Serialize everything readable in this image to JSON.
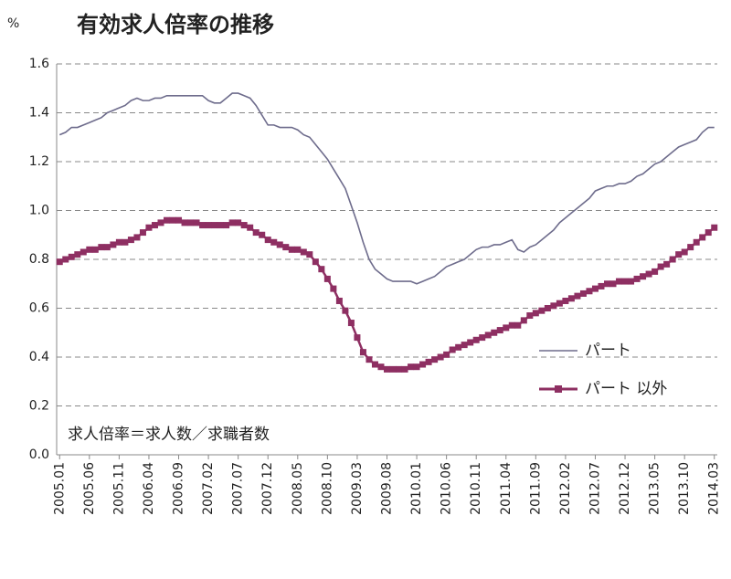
{
  "chart_data": {
    "type": "line",
    "title": "有効求人倍率の推移",
    "y_unit": "%",
    "annotation": "求人倍率＝求人数／求職者数",
    "categories": [
      "2005.01",
      null,
      null,
      null,
      null,
      "2005.06",
      null,
      null,
      null,
      null,
      "2005.11",
      null,
      null,
      null,
      null,
      "2006.04",
      null,
      null,
      null,
      null,
      "2006.09",
      null,
      null,
      null,
      null,
      "2007.02",
      null,
      null,
      null,
      null,
      "2007.07",
      null,
      null,
      null,
      null,
      "2007.12",
      null,
      null,
      null,
      null,
      "2008.05",
      null,
      null,
      null,
      null,
      "2008.10",
      null,
      null,
      null,
      null,
      "2009.03",
      null,
      null,
      null,
      null,
      "2009.08",
      null,
      null,
      null,
      null,
      "2010.01",
      null,
      null,
      null,
      null,
      "2010.06",
      null,
      null,
      null,
      null,
      "2010.11",
      null,
      null,
      null,
      null,
      "2011.04",
      null,
      null,
      null,
      null,
      "2011.09",
      null,
      null,
      null,
      null,
      "2012.02",
      null,
      null,
      null,
      null,
      "2012.07",
      null,
      null,
      null,
      null,
      "2012.12",
      null,
      null,
      null,
      null,
      "2013.05",
      null,
      null,
      null,
      null,
      "2013.10",
      null,
      null,
      null,
      null,
      "2014.03"
    ],
    "series": [
      {
        "name": "パート",
        "color": "#6e6c8c",
        "marker": false,
        "values": [
          1.31,
          1.32,
          1.34,
          1.34,
          1.35,
          1.36,
          1.37,
          1.38,
          1.4,
          1.41,
          1.42,
          1.43,
          1.45,
          1.46,
          1.45,
          1.45,
          1.46,
          1.46,
          1.47,
          1.47,
          1.47,
          1.47,
          1.47,
          1.47,
          1.47,
          1.45,
          1.44,
          1.44,
          1.46,
          1.48,
          1.48,
          1.47,
          1.46,
          1.43,
          1.39,
          1.35,
          1.35,
          1.34,
          1.34,
          1.34,
          1.33,
          1.31,
          1.3,
          1.27,
          1.24,
          1.21,
          1.17,
          1.13,
          1.09,
          1.02,
          0.95,
          0.87,
          0.8,
          0.76,
          0.74,
          0.72,
          0.71,
          0.71,
          0.71,
          0.71,
          0.7,
          0.71,
          0.72,
          0.73,
          0.75,
          0.77,
          0.78,
          0.79,
          0.8,
          0.82,
          0.84,
          0.85,
          0.85,
          0.86,
          0.86,
          0.87,
          0.88,
          0.84,
          0.83,
          0.85,
          0.86,
          0.88,
          0.9,
          0.92,
          0.95,
          0.97,
          0.99,
          1.01,
          1.03,
          1.05,
          1.08,
          1.09,
          1.1,
          1.1,
          1.11,
          1.11,
          1.12,
          1.14,
          1.15,
          1.17,
          1.19,
          1.2,
          1.22,
          1.24,
          1.26,
          1.27,
          1.28,
          1.29,
          1.32,
          1.34,
          1.34
        ]
      },
      {
        "name": "パート 以外",
        "color": "#8e2f62",
        "marker": true,
        "values": [
          0.79,
          0.8,
          0.81,
          0.82,
          0.83,
          0.84,
          0.84,
          0.85,
          0.85,
          0.86,
          0.87,
          0.87,
          0.88,
          0.89,
          0.91,
          0.93,
          0.94,
          0.95,
          0.96,
          0.96,
          0.96,
          0.95,
          0.95,
          0.95,
          0.94,
          0.94,
          0.94,
          0.94,
          0.94,
          0.95,
          0.95,
          0.94,
          0.93,
          0.91,
          0.9,
          0.88,
          0.87,
          0.86,
          0.85,
          0.84,
          0.84,
          0.83,
          0.82,
          0.79,
          0.76,
          0.72,
          0.68,
          0.63,
          0.59,
          0.54,
          0.48,
          0.42,
          0.39,
          0.37,
          0.36,
          0.35,
          0.35,
          0.35,
          0.35,
          0.36,
          0.36,
          0.37,
          0.38,
          0.39,
          0.4,
          0.41,
          0.43,
          0.44,
          0.45,
          0.46,
          0.47,
          0.48,
          0.49,
          0.5,
          0.51,
          0.52,
          0.53,
          0.53,
          0.55,
          0.57,
          0.58,
          0.59,
          0.6,
          0.61,
          0.62,
          0.63,
          0.64,
          0.65,
          0.66,
          0.67,
          0.68,
          0.69,
          0.7,
          0.7,
          0.71,
          0.71,
          0.71,
          0.72,
          0.73,
          0.74,
          0.75,
          0.77,
          0.78,
          0.8,
          0.82,
          0.83,
          0.85,
          0.87,
          0.89,
          0.91,
          0.93
        ]
      }
    ],
    "ylim": [
      0,
      1.6
    ],
    "yticks": [
      {
        "value": 0,
        "label": "0.0"
      },
      0.2,
      0.4,
      0.6,
      0.8,
      {
        "value": 1,
        "label": "1.0"
      },
      1.2,
      1.4,
      1.6
    ],
    "grid": true,
    "legend": "right"
  }
}
